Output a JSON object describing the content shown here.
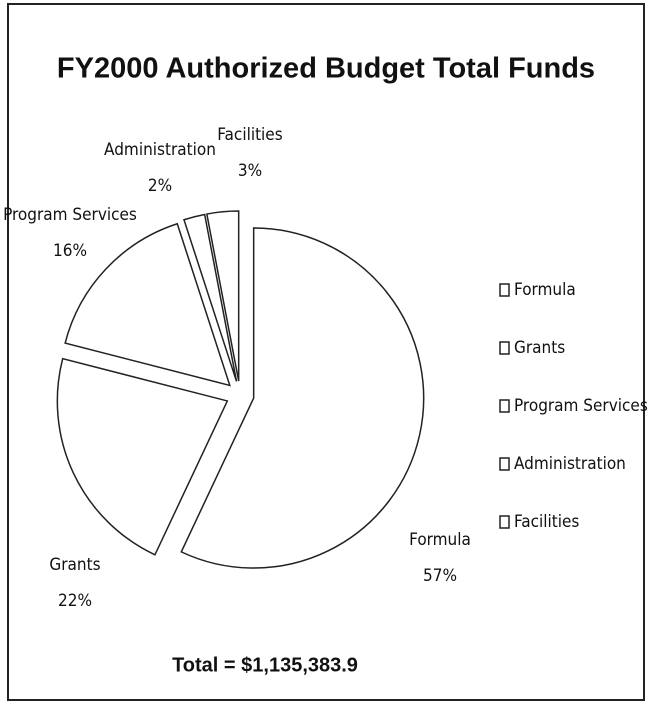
{
  "chart_data": {
    "type": "pie",
    "title": "FY2000 Authorized Budget Total Funds",
    "categories": [
      "Formula",
      "Grants",
      "Program Services",
      "Administration",
      "Facilities"
    ],
    "values": [
      57,
      22,
      16,
      2,
      3
    ],
    "value_labels": [
      "57%",
      "22%",
      "16%",
      "2%",
      "3%"
    ],
    "color": "#ffffff",
    "legend": "right",
    "annotation": "Total = $1,135,383.9"
  }
}
